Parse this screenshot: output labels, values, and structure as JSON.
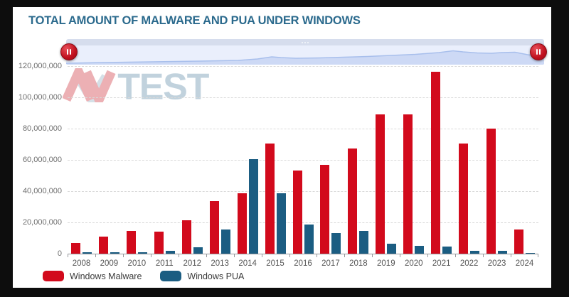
{
  "chart": {
    "title": "TOTAL AMOUNT OF MALWARE AND PUA UNDER WINDOWS"
  },
  "watermark": {
    "text_av": "AV",
    "text_test": "TEST"
  },
  "navigator": {
    "type": "time-range-slider",
    "left_handle": "pause-handle",
    "right_handle": "pause-handle"
  },
  "chart_data": {
    "type": "bar",
    "title": "TOTAL AMOUNT OF MALWARE AND PUA UNDER WINDOWS",
    "categories": [
      "2008",
      "2009",
      "2010",
      "2011",
      "2012",
      "2013",
      "2014",
      "2015",
      "2016",
      "2017",
      "2018",
      "2019",
      "2020",
      "2021",
      "2022",
      "2023",
      "2024"
    ],
    "series": [
      {
        "name": "Windows Malware",
        "color": "#d20a1c",
        "values": [
          7000000,
          11000000,
          14500000,
          14000000,
          21500000,
          33500000,
          38500000,
          70500000,
          53000000,
          57000000,
          67500000,
          89000000,
          89000000,
          116500000,
          70500000,
          80000000,
          15500000
        ]
      },
      {
        "name": "Windows PUA",
        "color": "#1b5d82",
        "values": [
          1000000,
          1000000,
          1000000,
          1800000,
          4000000,
          15500000,
          60500000,
          38500000,
          18500000,
          13000000,
          14500000,
          6500000,
          5000000,
          4500000,
          2000000,
          2000000,
          500000
        ]
      }
    ],
    "ylim": [
      0,
      120000000
    ],
    "ytick_step": 20000000,
    "ytick_labels": [
      "0",
      "20,000,000",
      "40,000,000",
      "60,000,000",
      "80,000,000",
      "100,000,000",
      "120,000,000"
    ],
    "grid": "horizontal-dashed",
    "legend_position": "bottom-left"
  },
  "colors": {
    "title": "#2b6a8d",
    "malware_bar": "#d20a1c",
    "pua_bar": "#1b5d82",
    "navigator_track": "#eaeffc",
    "navigator_scrollbar": "#d6dded",
    "handle_red": "#c0101e",
    "frame_background": "#0d0d0d"
  }
}
